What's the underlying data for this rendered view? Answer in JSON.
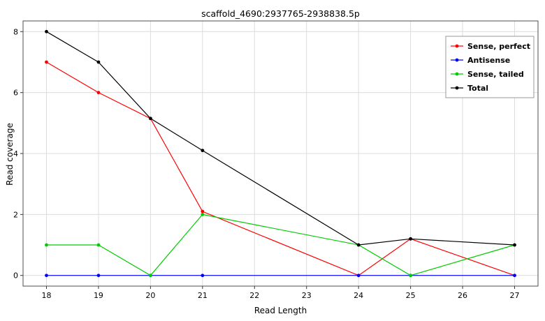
{
  "chart_data": {
    "type": "line",
    "title": "scaffold_4690:2937765-2938838.5p",
    "xlabel": "Read Length",
    "ylabel": "Read coverage",
    "x_ticks": [
      18,
      19,
      20,
      21,
      22,
      23,
      24,
      25,
      26,
      27
    ],
    "y_ticks": [
      0,
      2,
      4,
      6,
      8
    ],
    "xlim": [
      17.55,
      27.45
    ],
    "ylim": [
      -0.35,
      8.35
    ],
    "grid": true,
    "legend_position": "top-right",
    "x": [
      18,
      19,
      20,
      21,
      24,
      25,
      27
    ],
    "series": [
      {
        "name": "Sense, perfect",
        "color": "#ff0000",
        "values": [
          7,
          6,
          5.15,
          2.1,
          0,
          1.2,
          0
        ]
      },
      {
        "name": "Antisense",
        "color": "#0000ff",
        "values": [
          0,
          0,
          0,
          0,
          0,
          0,
          0
        ]
      },
      {
        "name": "Sense, tailed",
        "color": "#00cc00",
        "values": [
          1,
          1,
          0,
          2,
          1,
          0,
          1
        ]
      },
      {
        "name": "Total",
        "color": "#000000",
        "values": [
          8,
          7,
          5.15,
          4.1,
          1,
          1.2,
          1
        ]
      }
    ],
    "colors": {
      "grid": "#dcdcdc",
      "panel_border": "#4d4d4d",
      "tick": "#333333",
      "tick_label": "#000000",
      "legend_border": "#999999",
      "background": "#ffffff"
    }
  }
}
